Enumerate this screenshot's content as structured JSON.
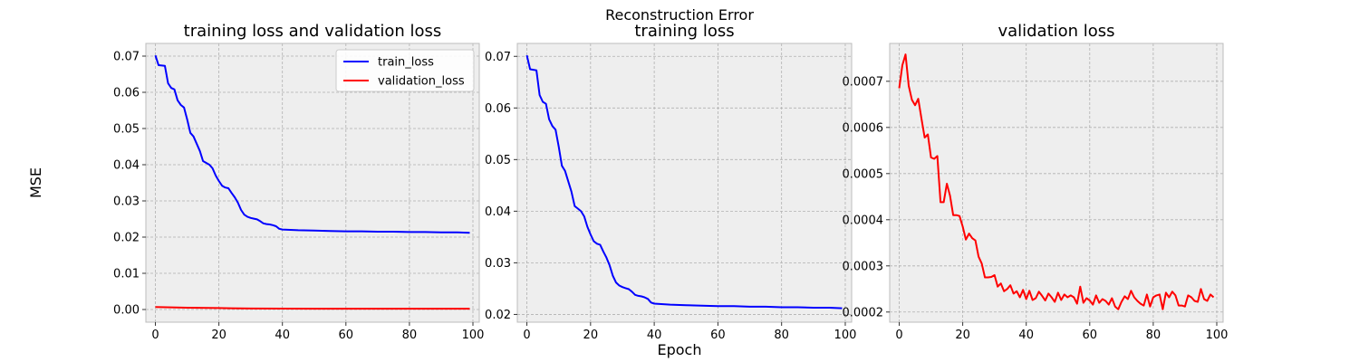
{
  "figure": {
    "suptitle": "Reconstruction Error",
    "ylabel": "MSE",
    "xlabel": "Epoch"
  },
  "colors": {
    "validation": "#ff0000",
    "train": "#0000ff",
    "panel_bg": "#eeeeee",
    "grid": "#b0b0b0"
  },
  "chart_data": [
    {
      "type": "line",
      "title": "training loss and validation loss",
      "xlim": [
        -3,
        102
      ],
      "ylim": [
        -0.0035,
        0.0735
      ],
      "xticks": [
        0,
        20,
        40,
        60,
        80,
        100
      ],
      "yticks": [
        0.0,
        0.01,
        0.02,
        0.03,
        0.04,
        0.05,
        0.06,
        0.07
      ],
      "ytick_labels": [
        "0.00",
        "0.01",
        "0.02",
        "0.03",
        "0.04",
        "0.05",
        "0.06",
        "0.07"
      ],
      "legend": "top-right",
      "series": [
        {
          "name": "validation_loss",
          "color": "#ff0000",
          "x": [
            0,
            10,
            20,
            30,
            40,
            50,
            60,
            70,
            80,
            90,
            99
          ],
          "y": [
            0.0007,
            0.0005,
            0.0004,
            0.00027,
            0.00024,
            0.00023,
            0.00023,
            0.00022,
            0.00022,
            0.00022,
            0.00023
          ]
        },
        {
          "name": "train_loss",
          "color": "#0000ff",
          "x": [
            0,
            1,
            2,
            3,
            4,
            5,
            6,
            7,
            8,
            9,
            10,
            11,
            12,
            13,
            14,
            15,
            16,
            17,
            18,
            19,
            20,
            21,
            22,
            23,
            24,
            25,
            26,
            27,
            28,
            29,
            30,
            31,
            32,
            33,
            34,
            35,
            36,
            37,
            38,
            39,
            40,
            45,
            50,
            55,
            60,
            65,
            70,
            75,
            80,
            85,
            90,
            95,
            99
          ],
          "y": [
            0.0702,
            0.0675,
            0.0674,
            0.0673,
            0.0625,
            0.0612,
            0.0608,
            0.0578,
            0.0565,
            0.0558,
            0.0525,
            0.0488,
            0.0478,
            0.0458,
            0.0438,
            0.041,
            0.0405,
            0.04,
            0.039,
            0.037,
            0.0355,
            0.0342,
            0.0337,
            0.0335,
            0.0322,
            0.031,
            0.0295,
            0.0275,
            0.0262,
            0.0256,
            0.0253,
            0.0251,
            0.0249,
            0.0244,
            0.0238,
            0.0236,
            0.0235,
            0.0233,
            0.023,
            0.0223,
            0.0221,
            0.0219,
            0.0218,
            0.0217,
            0.0216,
            0.0216,
            0.0215,
            0.0215,
            0.0214,
            0.0214,
            0.0213,
            0.0213,
            0.0212
          ]
        }
      ]
    },
    {
      "type": "line",
      "title": "training loss",
      "xlim": [
        -3,
        102
      ],
      "ylim": [
        0.0185,
        0.0725
      ],
      "xticks": [
        0,
        20,
        40,
        60,
        80,
        100
      ],
      "yticks": [
        0.02,
        0.03,
        0.04,
        0.05,
        0.06,
        0.07
      ],
      "ytick_labels": [
        "0.02",
        "0.03",
        "0.04",
        "0.05",
        "0.06",
        "0.07"
      ],
      "series": [
        {
          "name": "",
          "color": "#0000ff",
          "x": [
            0,
            1,
            2,
            3,
            4,
            5,
            6,
            7,
            8,
            9,
            10,
            11,
            12,
            13,
            14,
            15,
            16,
            17,
            18,
            19,
            20,
            21,
            22,
            23,
            24,
            25,
            26,
            27,
            28,
            29,
            30,
            31,
            32,
            33,
            34,
            35,
            36,
            37,
            38,
            39,
            40,
            45,
            50,
            55,
            60,
            65,
            70,
            75,
            80,
            85,
            90,
            95,
            99
          ],
          "y": [
            0.0702,
            0.0675,
            0.0674,
            0.0673,
            0.0625,
            0.0612,
            0.0608,
            0.0578,
            0.0565,
            0.0558,
            0.0525,
            0.0488,
            0.0478,
            0.0458,
            0.0438,
            0.041,
            0.0405,
            0.04,
            0.039,
            0.037,
            0.0355,
            0.0342,
            0.0337,
            0.0335,
            0.0322,
            0.031,
            0.0295,
            0.0275,
            0.0262,
            0.0256,
            0.0253,
            0.0251,
            0.0249,
            0.0244,
            0.0238,
            0.0236,
            0.0235,
            0.0233,
            0.023,
            0.0223,
            0.0221,
            0.0219,
            0.0218,
            0.0217,
            0.0216,
            0.0216,
            0.0215,
            0.0215,
            0.0214,
            0.0214,
            0.0213,
            0.0213,
            0.0212
          ]
        }
      ]
    },
    {
      "type": "line",
      "title": "validation loss",
      "xlim": [
        -3,
        102
      ],
      "ylim": [
        0.000178,
        0.000782
      ],
      "xticks": [
        0,
        20,
        40,
        60,
        80,
        100
      ],
      "yticks": [
        0.0002,
        0.0003,
        0.0004,
        0.0005,
        0.0006,
        0.0007
      ],
      "ytick_labels": [
        "0.0002",
        "0.0003",
        "0.0004",
        "0.0005",
        "0.0006",
        "0.0007"
      ],
      "series": [
        {
          "name": "",
          "color": "#ff0000",
          "x": [
            0,
            1,
            2,
            3,
            4,
            5,
            6,
            7,
            8,
            9,
            10,
            11,
            12,
            13,
            14,
            15,
            16,
            17,
            18,
            19,
            20,
            21,
            22,
            23,
            24,
            25,
            26,
            27,
            28,
            29,
            30,
            31,
            32,
            33,
            34,
            35,
            36,
            37,
            38,
            39,
            40,
            41,
            42,
            43,
            44,
            45,
            46,
            47,
            48,
            49,
            50,
            51,
            52,
            53,
            54,
            55,
            56,
            57,
            58,
            59,
            60,
            61,
            62,
            63,
            64,
            65,
            66,
            67,
            68,
            69,
            70,
            71,
            72,
            73,
            74,
            75,
            76,
            77,
            78,
            79,
            80,
            81,
            82,
            83,
            84,
            85,
            86,
            87,
            88,
            89,
            90,
            91,
            92,
            93,
            94,
            95,
            96,
            97,
            98,
            99
          ],
          "y": [
            0.000685,
            0.000735,
            0.000758,
            0.00069,
            0.00066,
            0.000648,
            0.000662,
            0.00062,
            0.000578,
            0.000585,
            0.000535,
            0.000532,
            0.000538,
            0.000438,
            0.000438,
            0.000478,
            0.000452,
            0.00041,
            0.00041,
            0.000408,
            0.000385,
            0.000357,
            0.00037,
            0.00036,
            0.000355,
            0.00032,
            0.000305,
            0.000275,
            0.000275,
            0.000276,
            0.00028,
            0.000255,
            0.000262,
            0.000245,
            0.00025,
            0.000258,
            0.00024,
            0.000245,
            0.000232,
            0.000248,
            0.000228,
            0.000246,
            0.000226,
            0.00023,
            0.000244,
            0.000235,
            0.000225,
            0.00024,
            0.000232,
            0.000222,
            0.000242,
            0.000226,
            0.000238,
            0.000232,
            0.000236,
            0.000232,
            0.000218,
            0.000255,
            0.00022,
            0.00023,
            0.000225,
            0.000216,
            0.000236,
            0.00022,
            0.000228,
            0.000224,
            0.000216,
            0.00023,
            0.000212,
            0.000206,
            0.000222,
            0.000234,
            0.000228,
            0.000246,
            0.000232,
            0.000224,
            0.000218,
            0.000214,
            0.000238,
            0.000212,
            0.000232,
            0.000236,
            0.000238,
            0.000206,
            0.000242,
            0.000232,
            0.000244,
            0.000236,
            0.000214,
            0.000214,
            0.000212,
            0.000236,
            0.000232,
            0.000224,
            0.000222,
            0.00025,
            0.000228,
            0.000224,
            0.000238,
            0.000232
          ]
        }
      ]
    }
  ]
}
